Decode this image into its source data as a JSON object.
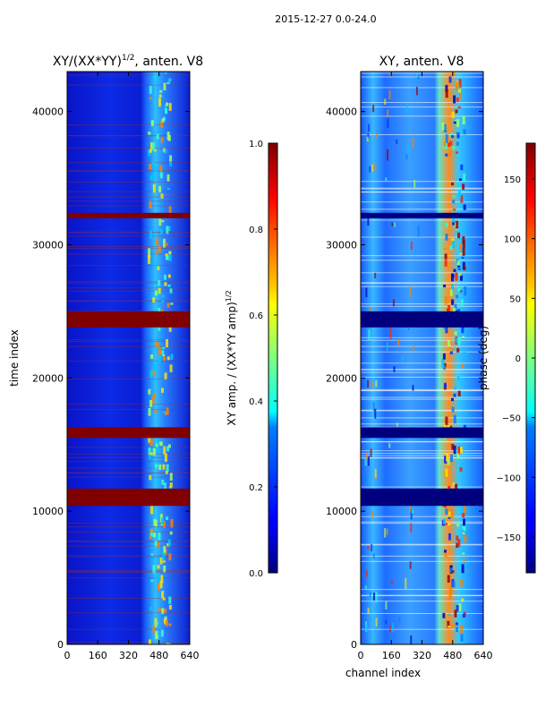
{
  "figure": {
    "suptitle": "2015-12-27 0.0-24.0"
  },
  "chart_data": [
    {
      "type": "heatmap",
      "title_main": "XY/(XX*YY)",
      "title_sup": "1/2",
      "title_rest": ", anten. V8",
      "xlabel": "",
      "ylabel": "time index",
      "xlim": [
        0,
        640
      ],
      "ylim": [
        0,
        43000
      ],
      "xticks": [
        "0",
        "160",
        "320",
        "480",
        "640"
      ],
      "yticks": [
        "0",
        "10000",
        "20000",
        "30000",
        "40000"
      ],
      "ytick_values": [
        0,
        10000,
        20000,
        30000,
        40000
      ],
      "xtick_values": [
        0,
        160,
        320,
        480,
        640
      ],
      "flagged_time_ranges": [
        [
          10400,
          11700
        ],
        [
          15500,
          16300
        ],
        [
          23800,
          25000
        ],
        [
          32000,
          32400
        ]
      ],
      "colorbar": {
        "label_main": "XY amp. / (XX*YY amp)",
        "label_sup": "1/2",
        "range": [
          0.0,
          1.0
        ],
        "ticks": [
          "0.0",
          "0.2",
          "0.4",
          "0.6",
          "0.8",
          "1.0"
        ],
        "tick_values": [
          0.0,
          0.2,
          0.4,
          0.6,
          0.8,
          1.0
        ],
        "colormap": "jet"
      }
    },
    {
      "type": "heatmap",
      "title_main": "XY, anten. V8",
      "xlabel": "channel index",
      "ylabel": "",
      "xlim": [
        0,
        640
      ],
      "ylim": [
        0,
        43000
      ],
      "xticks": [
        "0",
        "160",
        "320",
        "480",
        "640"
      ],
      "yticks": [
        "0",
        "10000",
        "20000",
        "30000",
        "40000"
      ],
      "ytick_values": [
        0,
        10000,
        20000,
        30000,
        40000
      ],
      "xtick_values": [
        0,
        160,
        320,
        480,
        640
      ],
      "flagged_time_ranges": [
        [
          10400,
          11700
        ],
        [
          15500,
          16300
        ],
        [
          23800,
          25000
        ],
        [
          32000,
          32400
        ]
      ],
      "colorbar": {
        "label_main": "phase (deg)",
        "range": [
          -180,
          180
        ],
        "ticks": [
          "−150",
          "−100",
          "−50",
          "0",
          "50",
          "100",
          "150"
        ],
        "tick_values": [
          -150,
          -100,
          -50,
          0,
          50,
          100,
          150
        ],
        "colormap": "jet"
      }
    }
  ]
}
